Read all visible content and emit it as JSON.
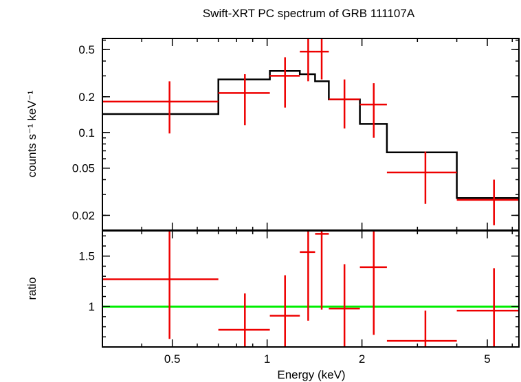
{
  "chart_data": {
    "title": "Swift-XRT PC spectrum of GRB 111107A",
    "xlabel": "Energy (keV)",
    "xscale": "log",
    "xlim": [
      0.3,
      6.3
    ],
    "xticks": [
      {
        "value": 0.5,
        "label": "0.5"
      },
      {
        "value": 1,
        "label": "1"
      },
      {
        "value": 2,
        "label": "2"
      },
      {
        "value": 5,
        "label": "5"
      }
    ],
    "colors": {
      "data": "#ee0000",
      "model": "#000000",
      "unity": "#00ee00",
      "axes": "#000000"
    },
    "panels": [
      {
        "id": "spectrum",
        "type": "scatter",
        "ylabel": "counts s⁻¹ keV⁻¹",
        "yscale": "log",
        "ylim": [
          0.015,
          0.62
        ],
        "yticks": [
          {
            "value": 0.02,
            "label": "0.02"
          },
          {
            "value": 0.05,
            "label": "0.05"
          },
          {
            "value": 0.1,
            "label": "0.1"
          },
          {
            "value": 0.2,
            "label": "0.2"
          },
          {
            "value": 0.5,
            "label": "0.5"
          }
        ],
        "points": [
          {
            "x": 0.49,
            "xlo": 0.3,
            "xhi": 0.7,
            "y": 0.182,
            "ylo": 0.098,
            "yhi": 0.27
          },
          {
            "x": 0.85,
            "xlo": 0.7,
            "xhi": 1.02,
            "y": 0.215,
            "ylo": 0.115,
            "yhi": 0.31
          },
          {
            "x": 1.14,
            "xlo": 1.02,
            "xhi": 1.27,
            "y": 0.3,
            "ylo": 0.162,
            "yhi": 0.43
          },
          {
            "x": 1.35,
            "xlo": 1.27,
            "xhi": 1.42,
            "y": 0.48,
            "ylo": 0.27,
            "yhi": 0.62
          },
          {
            "x": 1.49,
            "xlo": 1.42,
            "xhi": 1.57,
            "y": 0.48,
            "ylo": 0.28,
            "yhi": 0.62
          },
          {
            "x": 1.76,
            "xlo": 1.57,
            "xhi": 1.97,
            "y": 0.19,
            "ylo": 0.108,
            "yhi": 0.28
          },
          {
            "x": 2.18,
            "xlo": 1.97,
            "xhi": 2.4,
            "y": 0.172,
            "ylo": 0.09,
            "yhi": 0.26
          },
          {
            "x": 3.18,
            "xlo": 2.4,
            "xhi": 4.0,
            "y": 0.046,
            "ylo": 0.025,
            "yhi": 0.069
          },
          {
            "x": 5.25,
            "xlo": 4.0,
            "xhi": 6.3,
            "y": 0.027,
            "ylo": 0.0165,
            "yhi": 0.04
          }
        ],
        "model_steps": [
          {
            "xlo": 0.3,
            "xhi": 0.7,
            "y": 0.143
          },
          {
            "xlo": 0.7,
            "xhi": 1.02,
            "y": 0.28
          },
          {
            "xlo": 1.02,
            "xhi": 1.27,
            "y": 0.33
          },
          {
            "xlo": 1.27,
            "xhi": 1.42,
            "y": 0.31
          },
          {
            "xlo": 1.42,
            "xhi": 1.57,
            "y": 0.27
          },
          {
            "xlo": 1.57,
            "xhi": 1.97,
            "y": 0.19
          },
          {
            "xlo": 1.97,
            "xhi": 2.4,
            "y": 0.118
          },
          {
            "xlo": 2.4,
            "xhi": 4.0,
            "y": 0.068
          },
          {
            "xlo": 4.0,
            "xhi": 6.3,
            "y": 0.028
          }
        ]
      },
      {
        "id": "ratio",
        "type": "scatter",
        "ylabel": "ratio",
        "yscale": "linear",
        "ylim": [
          0.6,
          1.75
        ],
        "yticks": [
          {
            "value": 1,
            "label": "1"
          },
          {
            "value": 1.5,
            "label": "1.5"
          }
        ],
        "reference_line": 1,
        "points": [
          {
            "x": 0.49,
            "xlo": 0.3,
            "xhi": 0.7,
            "y": 1.27,
            "ylo": 0.68,
            "yhi": 1.75
          },
          {
            "x": 0.85,
            "xlo": 0.7,
            "xhi": 1.02,
            "y": 0.77,
            "ylo": 0.6,
            "yhi": 1.13
          },
          {
            "x": 1.14,
            "xlo": 1.02,
            "xhi": 1.27,
            "y": 0.91,
            "ylo": 0.6,
            "yhi": 1.31
          },
          {
            "x": 1.35,
            "xlo": 1.27,
            "xhi": 1.42,
            "y": 1.54,
            "ylo": 0.86,
            "yhi": 1.75
          },
          {
            "x": 1.49,
            "xlo": 1.42,
            "xhi": 1.57,
            "y": 1.72,
            "ylo": 0.97,
            "yhi": 1.75
          },
          {
            "x": 1.76,
            "xlo": 1.57,
            "xhi": 1.97,
            "y": 0.98,
            "ylo": 0.6,
            "yhi": 1.42
          },
          {
            "x": 2.18,
            "xlo": 1.97,
            "xhi": 2.4,
            "y": 1.39,
            "ylo": 0.72,
            "yhi": 1.75
          },
          {
            "x": 3.18,
            "xlo": 2.4,
            "xhi": 4.0,
            "y": 0.66,
            "ylo": 0.6,
            "yhi": 0.96
          },
          {
            "x": 5.25,
            "xlo": 4.0,
            "xhi": 6.3,
            "y": 0.96,
            "ylo": 0.6,
            "yhi": 1.38
          }
        ]
      }
    ]
  }
}
